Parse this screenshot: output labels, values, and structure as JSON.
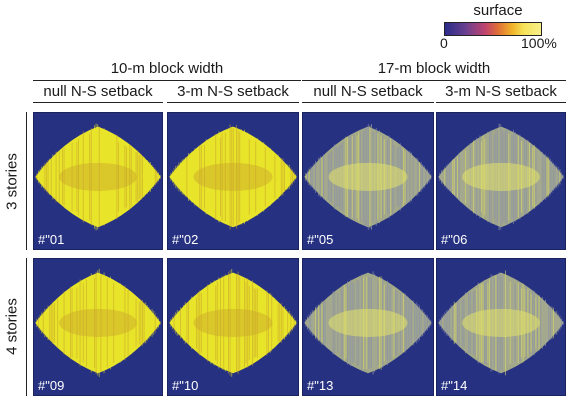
{
  "colorbar": {
    "title": "surface",
    "min_label": "0",
    "max_label": "100%",
    "colors": [
      "#2a2c8a",
      "#c1446e",
      "#f0b32a",
      "#f7f08a"
    ]
  },
  "groups": [
    {
      "title": "10-m block width"
    },
    {
      "title": "17-m block width"
    }
  ],
  "columns": [
    {
      "title": "null N-S setback"
    },
    {
      "title": "3-m N-S setback"
    },
    {
      "title": "null N-S setback"
    },
    {
      "title": "3-m N-S setback"
    }
  ],
  "rows": [
    {
      "label": "3 stories",
      "panels": [
        {
          "label": "#\"01",
          "density": 1.0
        },
        {
          "label": "#\"02",
          "density": 1.0
        },
        {
          "label": "#\"05",
          "density": 0.55
        },
        {
          "label": "#\"06",
          "density": 0.55
        }
      ]
    },
    {
      "label": "4 stories",
      "panels": [
        {
          "label": "#\"09",
          "density": 1.0
        },
        {
          "label": "#\"10",
          "density": 1.0
        },
        {
          "label": "#\"13",
          "density": 0.5
        },
        {
          "label": "#\"14",
          "density": 0.5
        }
      ]
    }
  ],
  "colors": {
    "background": "#263281",
    "high": "#e8e42a",
    "core": "#c9a52a",
    "low": "#8a8fb0"
  }
}
